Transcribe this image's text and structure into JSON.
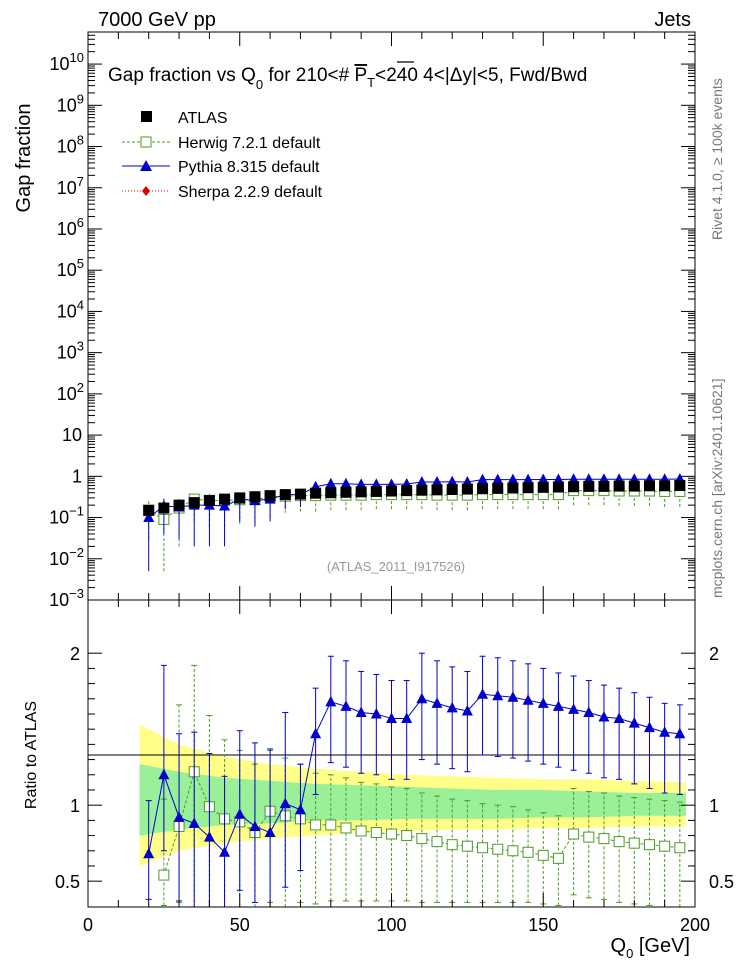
{
  "header": {
    "energy_label": "7000 GeV pp",
    "process_label": "Jets",
    "side_label_rivet": "Rivet 4.1.0, ≥ 100k events",
    "side_label_mcplots": "mcplots.cern.ch [arXiv:2401.10621]"
  },
  "colors": {
    "atlas": "#000000",
    "herwig": "#4d9a26",
    "pythia": "#0000cc",
    "sherpa": "#dd0000",
    "band_inner": "#99f099",
    "band_outer": "#ffff88"
  },
  "chart_data": [
    {
      "type": "scatter",
      "panel": "main",
      "title_parts": [
        "Gap fraction vs Q",
        "0",
        " for 210<# ",
        "P",
        "T",
        "<240  4<|",
        "Δ",
        "y|<5, Fwd/Bwd"
      ],
      "ylabel": "Gap fraction",
      "yscale": "log",
      "ylim": [
        0.001,
        60000000000
      ],
      "xlim": [
        0,
        200
      ],
      "y_ticks": [
        {
          "value": 0.001,
          "base": "10",
          "exp": "−3"
        },
        {
          "value": 0.01,
          "base": "10",
          "exp": "−2"
        },
        {
          "value": 0.1,
          "base": "10",
          "exp": "−1"
        },
        {
          "value": 1,
          "base": "1",
          "exp": ""
        },
        {
          "value": 10,
          "base": "10",
          "exp": ""
        },
        {
          "value": 100,
          "base": "10",
          "exp": "2"
        },
        {
          "value": 1000,
          "base": "10",
          "exp": "3"
        },
        {
          "value": 10000,
          "base": "10",
          "exp": "4"
        },
        {
          "value": 100000,
          "base": "10",
          "exp": "5"
        },
        {
          "value": 1000000,
          "base": "10",
          "exp": "6"
        },
        {
          "value": 10000000,
          "base": "10",
          "exp": "7"
        },
        {
          "value": 100000000,
          "base": "10",
          "exp": "8"
        },
        {
          "value": 1000000000,
          "base": "10",
          "exp": "9"
        },
        {
          "value": 10000000000,
          "base": "10",
          "exp": "10"
        }
      ],
      "watermark": "(ATLAS_2011_I917526)",
      "x": [
        20,
        25,
        30,
        35,
        40,
        45,
        50,
        55,
        60,
        65,
        70,
        75,
        80,
        85,
        90,
        95,
        100,
        105,
        110,
        115,
        120,
        125,
        130,
        135,
        140,
        145,
        150,
        155,
        160,
        165,
        170,
        175,
        180,
        185,
        190,
        195
      ],
      "series": [
        {
          "name": "ATLAS",
          "key": "atlas",
          "marker": "square-filled",
          "values": [
            0.15,
            0.17,
            0.2,
            0.23,
            0.26,
            0.28,
            0.3,
            0.32,
            0.34,
            0.36,
            0.37,
            0.39,
            0.4,
            0.41,
            0.42,
            0.43,
            0.44,
            0.45,
            0.46,
            0.47,
            0.48,
            0.49,
            0.5,
            0.51,
            0.52,
            0.53,
            0.54,
            0.55,
            0.56,
            0.57,
            0.57,
            0.58,
            0.58,
            0.59,
            0.59,
            0.6
          ]
        },
        {
          "name": "Herwig 7.2.1 default",
          "key": "herwig",
          "marker": "square-open",
          "values": [
            0.15,
            0.09,
            0.17,
            0.28,
            0.26,
            0.26,
            0.27,
            0.27,
            0.32,
            0.33,
            0.34,
            0.34,
            0.35,
            0.35,
            0.35,
            0.36,
            0.36,
            0.36,
            0.36,
            0.35,
            0.35,
            0.35,
            0.36,
            0.36,
            0.36,
            0.36,
            0.36,
            0.36,
            0.45,
            0.45,
            0.45,
            0.44,
            0.44,
            0.44,
            0.43,
            0.43
          ],
          "err_lo": [
            0.12,
            0.085,
            0.15,
            0.2,
            0.2,
            0.2,
            0.2,
            0.2,
            0.22,
            0.2,
            0.2,
            0.2,
            0.2,
            0.2,
            0.2,
            0.2,
            0.2,
            0.2,
            0.2,
            0.2,
            0.2,
            0.2,
            0.2,
            0.2,
            0.2,
            0.2,
            0.2,
            0.2,
            0.25,
            0.25,
            0.25,
            0.25,
            0.25,
            0.25,
            0.25,
            0.25
          ],
          "err_hi": [
            0.1,
            0.08,
            0.1,
            0.15,
            0.12,
            0.12,
            0.12,
            0.12,
            0.12,
            0.12,
            0.1,
            0.1,
            0.1,
            0.1,
            0.1,
            0.1,
            0.1,
            0.1,
            0.1,
            0.1,
            0.1,
            0.1,
            0.1,
            0.1,
            0.1,
            0.1,
            0.1,
            0.1,
            0.12,
            0.12,
            0.12,
            0.12,
            0.12,
            0.12,
            0.12,
            0.12
          ]
        },
        {
          "name": "Pythia 8.315 default",
          "key": "pythia",
          "marker": "triangle",
          "values": [
            0.1,
            0.19,
            0.18,
            0.2,
            0.2,
            0.19,
            0.28,
            0.26,
            0.28,
            0.36,
            0.36,
            0.56,
            0.66,
            0.66,
            0.64,
            0.64,
            0.64,
            0.65,
            0.73,
            0.73,
            0.74,
            0.73,
            0.83,
            0.83,
            0.83,
            0.83,
            0.84,
            0.84,
            0.85,
            0.85,
            0.85,
            0.85,
            0.85,
            0.85,
            0.85,
            0.86
          ],
          "err_lo": [
            0.095,
            0.15,
            0.15,
            0.18,
            0.18,
            0.17,
            0.2,
            0.2,
            0.2,
            0.2,
            0.18,
            0.2,
            0.2,
            0.2,
            0.2,
            0.2,
            0.2,
            0.2,
            0.2,
            0.2,
            0.2,
            0.2,
            0.2,
            0.2,
            0.2,
            0.2,
            0.2,
            0.2,
            0.2,
            0.2,
            0.2,
            0.2,
            0.2,
            0.2,
            0.2,
            0.2
          ],
          "err_hi": [
            0.06,
            0.1,
            0.1,
            0.1,
            0.1,
            0.1,
            0.1,
            0.1,
            0.1,
            0.1,
            0.1,
            0.12,
            0.12,
            0.12,
            0.12,
            0.12,
            0.12,
            0.12,
            0.12,
            0.12,
            0.12,
            0.12,
            0.15,
            0.15,
            0.15,
            0.15,
            0.15,
            0.15,
            0.15,
            0.15,
            0.15,
            0.15,
            0.15,
            0.15,
            0.15,
            0.15
          ]
        },
        {
          "name": "Sherpa 2.2.9 default",
          "key": "sherpa",
          "marker": "diamond",
          "values": []
        }
      ]
    },
    {
      "type": "scatter",
      "panel": "ratio",
      "ylabel": "Ratio to ATLAS",
      "xlabel_base": "Q",
      "xlabel_sub": "0",
      "xlabel_unit": " [GeV]",
      "xlim": [
        0,
        200
      ],
      "ylim": [
        0.33,
        2.35
      ],
      "y_ticks": [
        0.5,
        1,
        2
      ],
      "x_ticks": [
        0,
        50,
        100,
        150,
        200
      ],
      "x": [
        20,
        25,
        30,
        35,
        40,
        45,
        50,
        55,
        60,
        65,
        70,
        75,
        80,
        85,
        90,
        95,
        100,
        105,
        110,
        115,
        120,
        125,
        130,
        135,
        140,
        145,
        150,
        155,
        160,
        165,
        170,
        175,
        180,
        185,
        190,
        195
      ],
      "band_inner": {
        "x": [
          17,
          30,
          45,
          60,
          75,
          90,
          105,
          120,
          135,
          150,
          165,
          180,
          197
        ],
        "lo": [
          0.8,
          0.84,
          0.87,
          0.88,
          0.9,
          0.9,
          0.91,
          0.91,
          0.91,
          0.92,
          0.92,
          0.93,
          0.93
        ],
        "hi": [
          1.27,
          1.22,
          1.18,
          1.16,
          1.14,
          1.13,
          1.12,
          1.11,
          1.1,
          1.1,
          1.09,
          1.08,
          1.08
        ]
      },
      "band_outer": {
        "x": [
          17,
          30,
          45,
          60,
          75,
          90,
          105,
          120,
          135,
          150,
          165,
          180,
          197
        ],
        "lo": [
          0.6,
          0.7,
          0.75,
          0.78,
          0.8,
          0.82,
          0.83,
          0.84,
          0.84,
          0.85,
          0.85,
          0.86,
          0.86
        ],
        "hi": [
          1.53,
          1.4,
          1.32,
          1.27,
          1.24,
          1.22,
          1.2,
          1.19,
          1.18,
          1.17,
          1.17,
          1.16,
          1.15
        ]
      },
      "series": [
        {
          "name": "Herwig 7.2.1 default",
          "key": "herwig",
          "marker": "square-open",
          "values": [
            null,
            0.54,
            0.86,
            1.22,
            0.99,
            0.91,
            0.89,
            0.82,
            0.96,
            0.93,
            0.91,
            0.87,
            0.87,
            0.85,
            0.83,
            0.82,
            0.81,
            0.8,
            0.78,
            0.76,
            0.74,
            0.73,
            0.72,
            0.71,
            0.7,
            0.69,
            0.67,
            0.65,
            0.81,
            0.79,
            0.78,
            0.76,
            0.75,
            0.74,
            0.73,
            0.72
          ],
          "err_lo": [
            null,
            0.2,
            0.5,
            0.9,
            0.7,
            0.65,
            0.6,
            0.55,
            0.6,
            0.6,
            0.55,
            0.52,
            0.5,
            0.48,
            0.46,
            0.45,
            0.44,
            0.43,
            0.42,
            0.4,
            0.38,
            0.37,
            0.36,
            0.35,
            0.34,
            0.33,
            0.32,
            0.31,
            0.4,
            0.4,
            0.4,
            0.4,
            0.4,
            0.4,
            0.4,
            0.4
          ],
          "err_hi": [
            null,
            0.5,
            0.8,
            0.7,
            0.6,
            0.52,
            0.47,
            0.45,
            0.4,
            0.38,
            0.36,
            0.34,
            0.33,
            0.33,
            0.32,
            0.32,
            0.31,
            0.31,
            0.3,
            0.3,
            0.3,
            0.3,
            0.29,
            0.29,
            0.29,
            0.28,
            0.28,
            0.28,
            0.3,
            0.3,
            0.3,
            0.3,
            0.3,
            0.3,
            0.3,
            0.3
          ]
        },
        {
          "name": "Pythia 8.315 default",
          "key": "pythia",
          "marker": "triangle",
          "values": [
            0.68,
            1.2,
            0.92,
            0.88,
            0.79,
            0.69,
            0.94,
            0.86,
            0.82,
            1.01,
            0.97,
            1.47,
            1.68,
            1.65,
            1.61,
            1.6,
            1.57,
            1.57,
            1.7,
            1.67,
            1.64,
            1.62,
            1.73,
            1.72,
            1.71,
            1.69,
            1.67,
            1.65,
            1.63,
            1.61,
            1.58,
            1.57,
            1.54,
            1.51,
            1.48,
            1.47
          ],
          "err_lo": [
            0.3,
            0.5,
            0.55,
            0.55,
            0.5,
            0.45,
            0.5,
            0.5,
            0.5,
            0.55,
            0.4,
            0.4,
            0.4,
            0.4,
            0.4,
            0.4,
            0.4,
            0.4,
            0.4,
            0.4,
            0.4,
            0.4,
            0.4,
            0.4,
            0.4,
            0.4,
            0.4,
            0.4,
            0.4,
            0.4,
            0.4,
            0.4,
            0.4,
            0.4,
            0.4,
            0.4
          ],
          "err_hi": [
            0.35,
            0.72,
            0.55,
            0.6,
            0.55,
            0.5,
            0.55,
            0.55,
            0.55,
            0.6,
            0.3,
            0.3,
            0.3,
            0.3,
            0.27,
            0.26,
            0.25,
            0.25,
            0.3,
            0.28,
            0.27,
            0.26,
            0.25,
            0.25,
            0.24,
            0.24,
            0.23,
            0.22,
            0.22,
            0.21,
            0.21,
            0.2,
            0.2,
            0.2,
            0.19,
            0.19
          ]
        }
      ]
    }
  ]
}
